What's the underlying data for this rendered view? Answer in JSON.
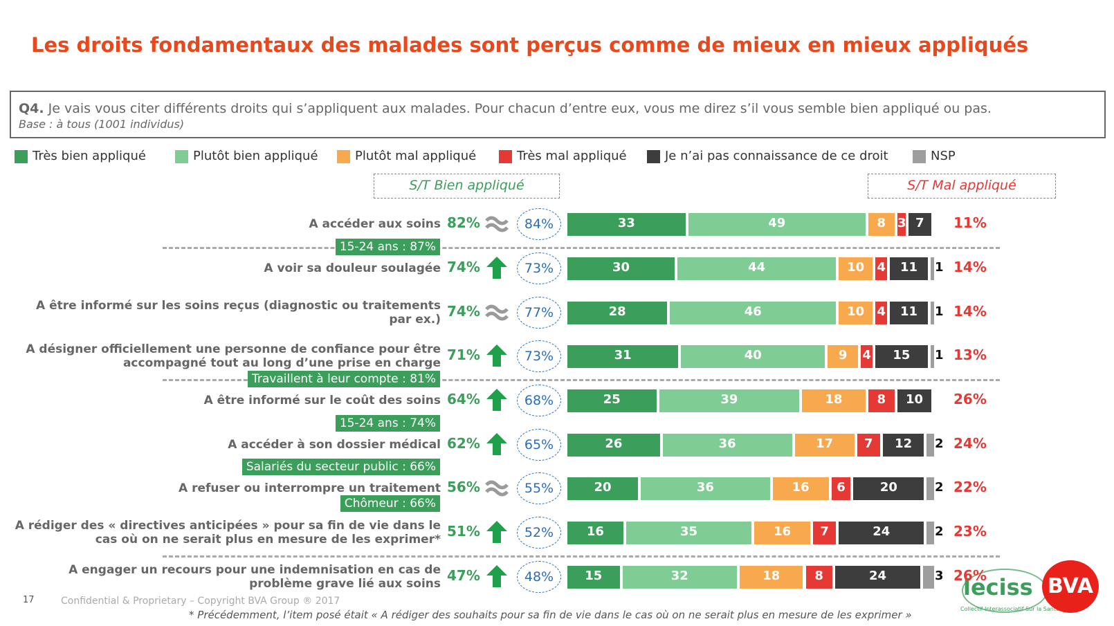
{
  "header": {
    "title": "Les droits fondamentaux des malades sont perçus comme de mieux en mieux appliqués",
    "question_number": "Q4.",
    "question": "Je vais vous citer différents droits qui s’appliquent aux malades. Pour chacun d’entre eux, vous me direz s’il vous semble bien appliqué ou pas.",
    "base": "Base : à tous (1001 individus)"
  },
  "chart_data": {
    "type": "stacked-bar",
    "categories": [
      "A accéder aux soins",
      "A voir sa douleur soulagée",
      "A être informé sur les soins reçus (diagnostic ou traitements par ex.)",
      "A désigner officiellement une personne de confiance pour être accompagné tout au long d’une prise en charge",
      "A être informé sur le coût des soins",
      "A accéder à son dossier médical",
      "A refuser ou interrompre un traitement",
      "A rédiger des « directives anticipées » pour sa fin de vie dans le cas où on ne serait plus en mesure de les exprimer*",
      "A engager un recours pour une indemnisation en cas de problème grave lié aux soins"
    ],
    "xlim": [
      0,
      100
    ],
    "series": [
      {
        "name": "Très bien appliqué",
        "color": "#3b9e5b",
        "values": [
          33,
          30,
          28,
          31,
          25,
          26,
          20,
          16,
          15
        ]
      },
      {
        "name": "Plutôt bien appliqué",
        "color": "#7fcc95",
        "values": [
          49,
          44,
          46,
          40,
          39,
          36,
          36,
          35,
          32
        ]
      },
      {
        "name": "Plutôt mal appliqué",
        "color": "#f9a94d",
        "values": [
          8,
          10,
          10,
          9,
          18,
          17,
          16,
          16,
          18
        ]
      },
      {
        "name": "Très mal appliqué",
        "color": "#e53935",
        "values": [
          3,
          4,
          4,
          4,
          8,
          7,
          6,
          7,
          8
        ]
      },
      {
        "name": "Je n’ai pas connaissance de ce droit",
        "color": "#3d3d3d",
        "values": [
          7,
          11,
          11,
          15,
          10,
          12,
          20,
          24,
          24
        ]
      },
      {
        "name": "NSP",
        "color": "#9e9e9e",
        "values": [
          null,
          1,
          1,
          1,
          null,
          2,
          2,
          2,
          3
        ]
      }
    ],
    "st_bien": {
      "label": "S/T Bien appliqué",
      "values": [
        82,
        74,
        74,
        71,
        64,
        62,
        56,
        51,
        47
      ],
      "value_labels": [
        "82%",
        "74%",
        "74%",
        "71%",
        "64%",
        "62%",
        "56%",
        "51%",
        "47%"
      ]
    },
    "previous": {
      "values": [
        84,
        73,
        77,
        73,
        68,
        65,
        55,
        52,
        48
      ],
      "value_labels": [
        "84%",
        "73%",
        "77%",
        "73%",
        "68%",
        "65%",
        "55%",
        "52%",
        "48%"
      ]
    },
    "trend": [
      "stable",
      "up",
      "stable",
      "up",
      "up",
      "up",
      "stable",
      "up",
      "up"
    ],
    "st_mal": {
      "label": "S/T Mal appliqué",
      "values": [
        11,
        14,
        14,
        13,
        26,
        24,
        22,
        23,
        26
      ],
      "value_labels": [
        "11%",
        "14%",
        "14%",
        "13%",
        "26%",
        "24%",
        "22%",
        "23%",
        "26%"
      ]
    },
    "annotations": [
      [],
      [
        "15-24 ans : 87%"
      ],
      [],
      [],
      [
        "Travaillent à leur compte : 81%"
      ],
      [
        "15-24 ans : 74%"
      ],
      [
        "Salariés du secteur public : 66%",
        "Chômeur : 66%"
      ],
      [],
      []
    ]
  },
  "footer": {
    "page": "17",
    "copyright": "Confidential & Proprietary – Copyright BVA Group ® 2017",
    "note": "* Précédemment, l’item posé était « A rédiger des souhaits pour sa fin de vie dans le cas où on ne serait plus en mesure de les exprimer »",
    "logo_ciss": "leciss",
    "logo_ciss_sub": "Collectif Interassociatif Sur la Santé",
    "logo_bva": "BVA"
  }
}
